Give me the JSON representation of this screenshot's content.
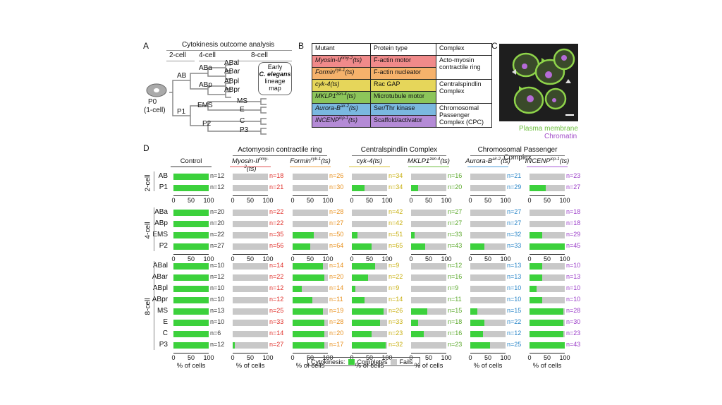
{
  "panels": {
    "a": "A",
    "b": "B",
    "c": "C",
    "d": "D"
  },
  "panelA": {
    "title": "Cytokinesis outcome analysis",
    "stages": [
      "2-cell",
      "4-cell",
      "8-cell"
    ],
    "root": "P0",
    "root_sub": "(1-cell)",
    "nodes": [
      "AB",
      "P1",
      "ABa",
      "ABp",
      "EMS",
      "P2",
      "ABal",
      "ABar",
      "ABpl",
      "ABpr",
      "MS",
      "E",
      "C",
      "P3"
    ],
    "callout": [
      "Early",
      "C. elegans",
      "lineage",
      "map"
    ]
  },
  "panelB": {
    "headers": [
      "Mutant",
      "Protein type",
      "Complex"
    ],
    "rows": [
      {
        "mutant": "Myosin-II",
        "sup": "nmy-2",
        "suffix": "(ts)",
        "type": "F-actin motor",
        "color": "c-red"
      },
      {
        "mutant": "Formin",
        "sup": "cyk-1",
        "suffix": "(ts)",
        "type": "F-actin nucleator",
        "color": "c-orange"
      },
      {
        "mutant": "cyk-4(ts)",
        "sup": "",
        "suffix": "",
        "type": "Rac GAP",
        "color": "c-yellow"
      },
      {
        "mutant": "MKLP1",
        "sup": "zen-4",
        "suffix": "(ts)",
        "type": "Microtubule motor",
        "color": "c-green"
      },
      {
        "mutant": "Aurora-B",
        "sup": "air-2",
        "suffix": "(ts)",
        "type": "Ser/Thr kinase",
        "color": "c-blue"
      },
      {
        "mutant": "INCENP",
        "sup": "icp-1",
        "suffix": "(ts)",
        "type": "Scaffold/activator",
        "color": "c-purple"
      }
    ],
    "complexes": [
      "Acto-myosin contractile ring",
      "Centralspindlin Complex",
      "Chromosomal Passenger Complex (CPC)"
    ]
  },
  "panelC": {
    "label1": "Plasma membrane",
    "label2": "Chromatin",
    "color1": "#8fd44a",
    "color2": "#b56bd6"
  },
  "panelD": {
    "groups": [
      "Actomyosin contractile ring",
      "Centralspindlin Complex",
      "Chromosomal Passenger Complex"
    ],
    "columns": [
      {
        "name": "Control",
        "sup": "",
        "suffix": "",
        "italic": false,
        "ncolor": "#333",
        "line": "#333"
      },
      {
        "name": "Myosin-II",
        "sup": "nmy-2",
        "suffix": "(ts)",
        "italic": true,
        "ncolor": "#e0302a",
        "line": "#e05050"
      },
      {
        "name": "Formin",
        "sup": "cyk-1",
        "suffix": "(ts)",
        "italic": true,
        "ncolor": "#e8901c",
        "line": "#f0a040"
      },
      {
        "name": "cyk-4(ts)",
        "sup": "",
        "suffix": "",
        "italic": true,
        "ncolor": "#c8b010",
        "line": "#d8c030"
      },
      {
        "name": "MKLP1",
        "sup": "zen-4",
        "suffix": "(ts)",
        "italic": true,
        "ncolor": "#5aa82a",
        "line": "#6cbc3c"
      },
      {
        "name": "Aurora-B",
        "sup": "air-2",
        "suffix": "(ts)",
        "italic": true,
        "ncolor": "#2a86c8",
        "line": "#4a9ad8"
      },
      {
        "name": "INCENP",
        "sup": "icp-1",
        "suffix": "(ts)",
        "italic": true,
        "ncolor": "#9a3cc8",
        "line": "#a85ad8"
      }
    ],
    "stages": [
      {
        "name": "2-cell",
        "rows": [
          "AB",
          "P1"
        ]
      },
      {
        "name": "4-cell",
        "rows": [
          "ABa",
          "ABp",
          "EMS",
          "P2"
        ]
      },
      {
        "name": "8-cell",
        "rows": [
          "ABal",
          "ABar",
          "ABpl",
          "ABpr",
          "MS",
          "E",
          "C",
          "P3"
        ]
      }
    ],
    "xticks": [
      "0",
      "50",
      "100"
    ],
    "xlabel": "% of cells",
    "legend": {
      "title": "Cytokinesis:",
      "complete": "Completes",
      "fail": "Fails",
      "complete_color": "#3cd13c",
      "fail_color": "#c8c8c8"
    }
  },
  "chart_data": {
    "type": "bar",
    "orientation": "horizontal-stacked",
    "xlim": [
      0,
      100
    ],
    "xlabel": "% of cells",
    "categories": [
      "AB",
      "P1",
      "ABa",
      "ABp",
      "EMS",
      "P2",
      "ABal",
      "ABar",
      "ABpl",
      "ABpr",
      "MS",
      "E",
      "C",
      "P3"
    ],
    "series": [
      {
        "name": "Control",
        "completes": [
          100,
          100,
          100,
          100,
          100,
          100,
          100,
          100,
          100,
          100,
          100,
          100,
          100,
          100
        ],
        "n": [
          "n=12",
          "n=12",
          "n=20",
          "n=20",
          "n=22",
          "n=27",
          "n=10",
          "n=12",
          "n=10",
          "n=10",
          "n=13",
          "n=10",
          "n=6",
          "n=12"
        ]
      },
      {
        "name": "Myosin-II(ts)",
        "completes": [
          0,
          0,
          0,
          0,
          0,
          0,
          0,
          0,
          0,
          0,
          0,
          0,
          0,
          5
        ],
        "n": [
          "n=18",
          "n=21",
          "n=22",
          "n=22",
          "n=35",
          "n=56",
          "n=14",
          "n=22",
          "n=12",
          "n=12",
          "n=25",
          "n=33",
          "n=14",
          "n=27"
        ]
      },
      {
        "name": "Formin(ts)",
        "completes": [
          0,
          0,
          0,
          0,
          60,
          50,
          85,
          90,
          25,
          55,
          85,
          90,
          90,
          90
        ],
        "n": [
          "n=26",
          "n=30",
          "n=28",
          "n=27",
          "n=50",
          "n=64",
          "n=14",
          "n=20",
          "n=14",
          "n=11",
          "n=19",
          "n=28",
          "n=20",
          "n=17"
        ]
      },
      {
        "name": "cyk-4(ts)",
        "completes": [
          0,
          35,
          0,
          0,
          15,
          55,
          65,
          45,
          10,
          35,
          90,
          80,
          55,
          95
        ],
        "n": [
          "n=34",
          "n=34",
          "n=42",
          "n=42",
          "n=51",
          "n=65",
          "n=9",
          "n=22",
          "n=9",
          "n=14",
          "n=26",
          "n=33",
          "n=23",
          "n=32"
        ]
      },
      {
        "name": "MKLP1(ts)",
        "completes": [
          0,
          20,
          0,
          0,
          10,
          40,
          0,
          0,
          0,
          0,
          45,
          20,
          35,
          0
        ],
        "n": [
          "n=16",
          "n=20",
          "n=27",
          "n=27",
          "n=33",
          "n=43",
          "n=12",
          "n=16",
          "n=9",
          "n=11",
          "n=15",
          "n=18",
          "n=16",
          "n=23"
        ]
      },
      {
        "name": "Aurora-B(ts)",
        "completes": [
          0,
          0,
          0,
          0,
          0,
          40,
          0,
          0,
          0,
          0,
          20,
          40,
          35,
          55
        ],
        "n": [
          "n=21",
          "n=29",
          "n=27",
          "n=27",
          "n=32",
          "n=33",
          "n=13",
          "n=13",
          "n=10",
          "n=10",
          "n=15",
          "n=22",
          "n=12",
          "n=25"
        ]
      },
      {
        "name": "INCENP(ts)",
        "completes": [
          0,
          45,
          0,
          0,
          35,
          100,
          35,
          35,
          20,
          35,
          95,
          95,
          95,
          100
        ],
        "n": [
          "n=23",
          "n=27",
          "n=18",
          "n=18",
          "n=29",
          "n=45",
          "n=10",
          "n=13",
          "n=10",
          "n=10",
          "n=28",
          "n=30",
          "n=23",
          "n=43"
        ]
      }
    ]
  }
}
